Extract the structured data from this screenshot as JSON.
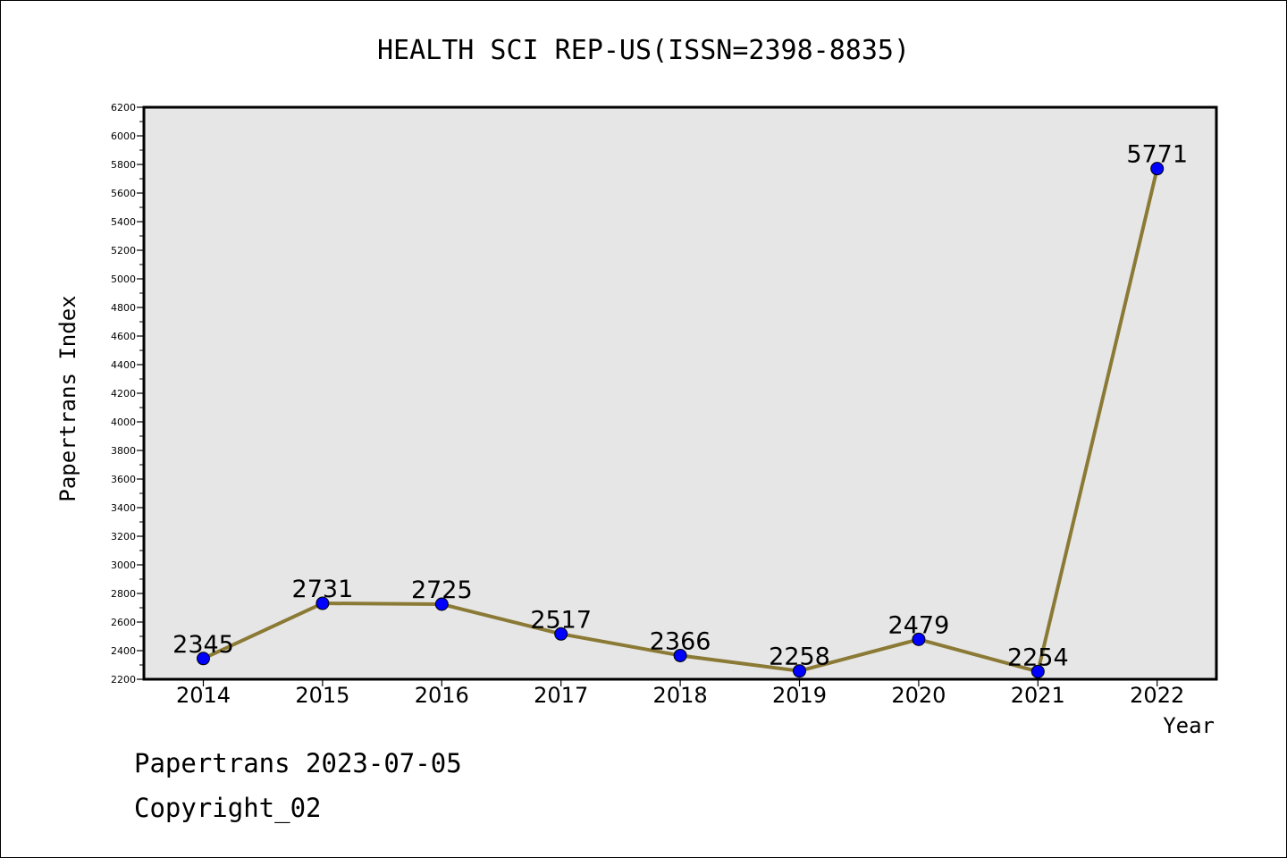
{
  "title": "HEALTH SCI REP-US(ISSN=2398-8835)",
  "footer": {
    "line1": "Papertrans 2023-07-05",
    "line2": "Copyright_02"
  },
  "colors": {
    "line": "#8b7a35",
    "marker": "#0000ff",
    "plot_background": "#e6e6e6",
    "frame": "#000000"
  },
  "chart_data": {
    "type": "line",
    "title": "HEALTH SCI REP-US(ISSN=2398-8835)",
    "xlabel": "Year",
    "ylabel": "Papertrans Index",
    "categories": [
      "2014",
      "2015",
      "2016",
      "2017",
      "2018",
      "2019",
      "2020",
      "2021",
      "2022"
    ],
    "values": [
      2345,
      2731,
      2725,
      2517,
      2366,
      2258,
      2479,
      2254,
      5771
    ],
    "ylim": [
      2200,
      6200
    ],
    "yticks": [
      2200,
      2400,
      2600,
      2800,
      3000,
      3200,
      3400,
      3600,
      3800,
      4000,
      4200,
      4400,
      4600,
      4800,
      5000,
      5200,
      5400,
      5600,
      5800,
      6000,
      6200
    ],
    "grid": false,
    "legend": "none"
  }
}
